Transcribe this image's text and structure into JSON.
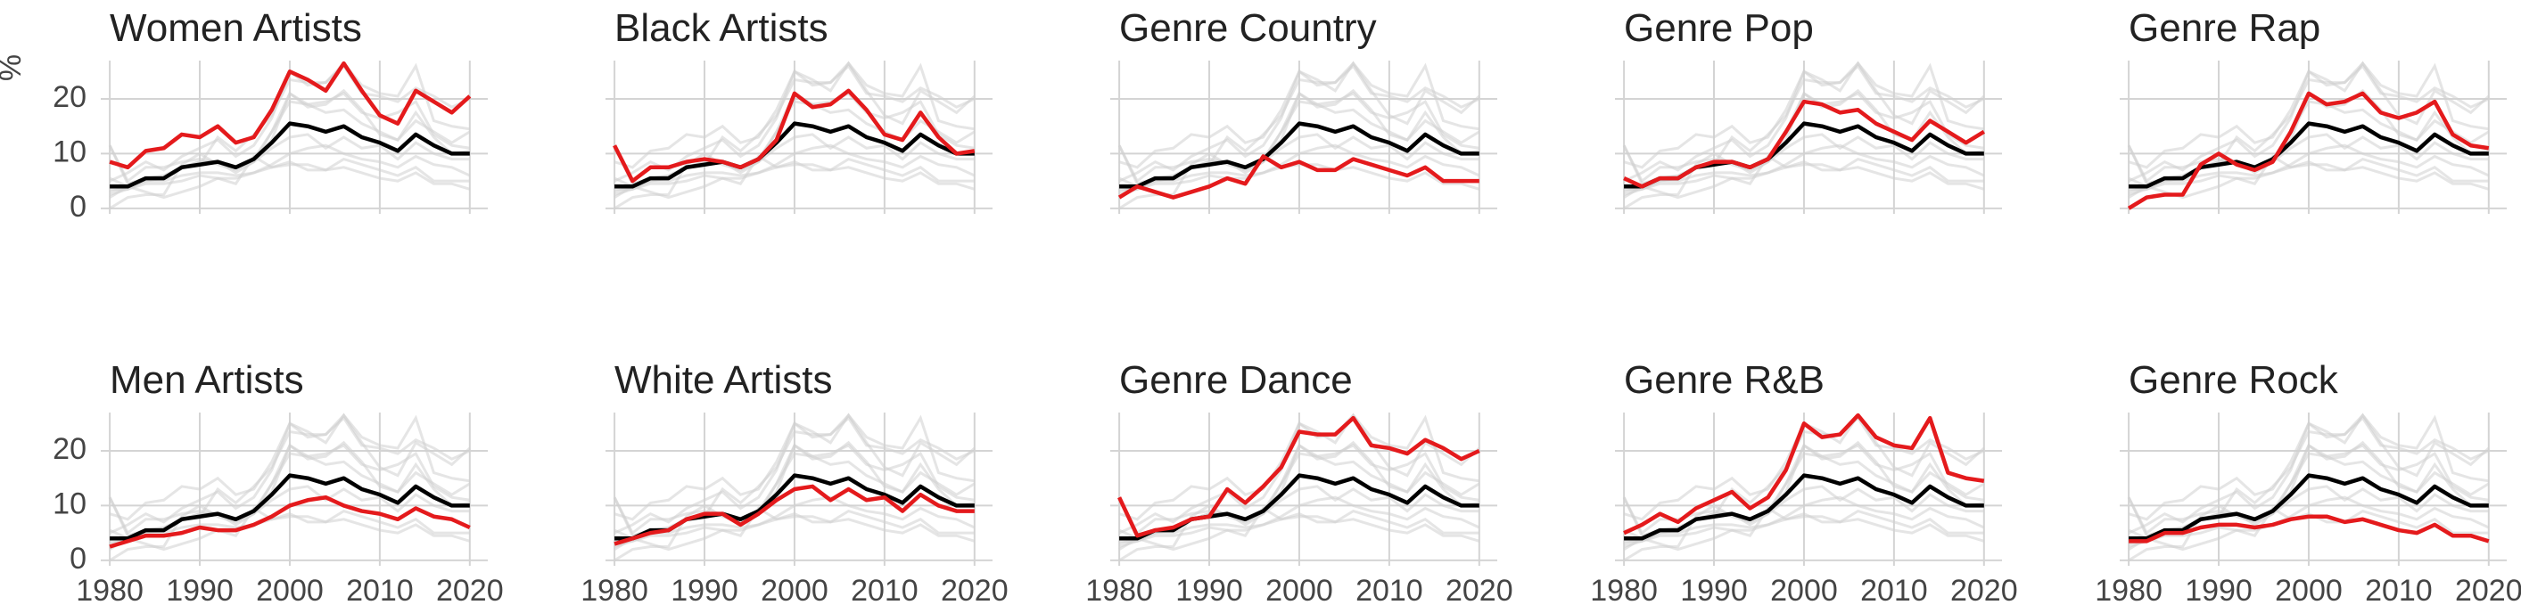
{
  "chart_data": [
    {
      "type": "line",
      "title": "Women Artists",
      "ylabel": "%",
      "x": [
        1980,
        1982,
        1984,
        1986,
        1988,
        1990,
        1992,
        1994,
        1996,
        1998,
        2000,
        2002,
        2004,
        2006,
        2008,
        2010,
        2012,
        2014,
        2016,
        2018,
        2020
      ],
      "series": [
        {
          "color": "#e41a1c",
          "values": [
            8.5,
            7.5,
            10.5,
            11,
            13.5,
            13,
            15,
            12,
            13,
            18,
            25,
            23.5,
            21.5,
            26.5,
            21.5,
            17,
            15.5,
            21.5,
            19.5,
            17.5,
            20.5
          ]
        },
        {
          "color": "#000000",
          "values": [
            4,
            4,
            5.5,
            5.5,
            7.5,
            8,
            8.5,
            7.5,
            9,
            12,
            15.5,
            15,
            14,
            15,
            13,
            12,
            10.5,
            13.5,
            11.5,
            10,
            10
          ]
        }
      ],
      "xlim": [
        1979,
        2022
      ],
      "ylim": [
        -1,
        27
      ],
      "xticks": [
        1980,
        1990,
        2000,
        2010,
        2020
      ],
      "yticks": [
        0,
        10,
        20
      ],
      "grid": true
    },
    {
      "type": "line",
      "title": "Black Artists",
      "x": [
        1980,
        1982,
        1984,
        1986,
        1988,
        1990,
        1992,
        1994,
        1996,
        1998,
        2000,
        2002,
        2004,
        2006,
        2008,
        2010,
        2012,
        2014,
        2016,
        2018,
        2020
      ],
      "series": [
        {
          "color": "#e41a1c",
          "values": [
            11.5,
            5,
            7.5,
            7.5,
            8.5,
            9,
            8.5,
            7.5,
            9,
            12.5,
            21,
            18.5,
            19,
            21.5,
            18,
            13.5,
            12.5,
            17.5,
            13,
            10,
            10.5
          ]
        },
        {
          "color": "#000000",
          "values": [
            4,
            4,
            5.5,
            5.5,
            7.5,
            8,
            8.5,
            7.5,
            9,
            12,
            15.5,
            15,
            14,
            15,
            13,
            12,
            10.5,
            13.5,
            11.5,
            10,
            10
          ]
        }
      ],
      "xlim": [
        1979,
        2022
      ],
      "ylim": [
        -1,
        27
      ],
      "xticks": [
        1980,
        1990,
        2000,
        2010,
        2020
      ],
      "yticks": [
        0,
        10,
        20
      ],
      "grid": true
    },
    {
      "type": "line",
      "title": "Genre Country",
      "x": [
        1980,
        1982,
        1984,
        1986,
        1988,
        1990,
        1992,
        1994,
        1996,
        1998,
        2000,
        2002,
        2004,
        2006,
        2008,
        2010,
        2012,
        2014,
        2016,
        2018,
        2020
      ],
      "series": [
        {
          "color": "#e41a1c",
          "values": [
            2,
            4,
            3,
            2,
            3,
            4,
            5.5,
            4.5,
            9.5,
            7.5,
            8.5,
            7,
            7,
            9,
            8,
            7,
            6,
            7.5,
            5,
            5,
            5
          ]
        },
        {
          "color": "#000000",
          "values": [
            4,
            4,
            5.5,
            5.5,
            7.5,
            8,
            8.5,
            7.5,
            9,
            12,
            15.5,
            15,
            14,
            15,
            13,
            12,
            10.5,
            13.5,
            11.5,
            10,
            10
          ]
        }
      ],
      "xlim": [
        1979,
        2022
      ],
      "ylim": [
        -1,
        27
      ],
      "xticks": [
        1980,
        1990,
        2000,
        2010,
        2020
      ],
      "yticks": [
        0,
        10,
        20
      ],
      "grid": true
    },
    {
      "type": "line",
      "title": "Genre Pop",
      "x": [
        1980,
        1982,
        1984,
        1986,
        1988,
        1990,
        1992,
        1994,
        1996,
        1998,
        2000,
        2002,
        2004,
        2006,
        2008,
        2010,
        2012,
        2014,
        2016,
        2018,
        2020
      ],
      "series": [
        {
          "color": "#e41a1c",
          "values": [
            5.5,
            4,
            5.5,
            5.5,
            7.5,
            8.5,
            8.5,
            7.5,
            9,
            14,
            19.5,
            19,
            17.5,
            18,
            15.5,
            14,
            12.5,
            16,
            14,
            12,
            14
          ]
        },
        {
          "color": "#000000",
          "values": [
            4,
            4,
            5.5,
            5.5,
            7.5,
            8,
            8.5,
            7.5,
            9,
            12,
            15.5,
            15,
            14,
            15,
            13,
            12,
            10.5,
            13.5,
            11.5,
            10,
            10
          ]
        }
      ],
      "xlim": [
        1979,
        2022
      ],
      "ylim": [
        -1,
        27
      ],
      "xticks": [
        1980,
        1990,
        2000,
        2010,
        2020
      ],
      "yticks": [
        0,
        10,
        20
      ],
      "grid": true
    },
    {
      "type": "line",
      "title": "Genre Rap",
      "x": [
        1980,
        1982,
        1984,
        1986,
        1988,
        1990,
        1992,
        1994,
        1996,
        1998,
        2000,
        2002,
        2004,
        2006,
        2008,
        2010,
        2012,
        2014,
        2016,
        2018,
        2020
      ],
      "series": [
        {
          "color": "#e41a1c",
          "values": [
            0,
            2,
            2.5,
            2.5,
            8,
            10,
            8,
            7,
            8.5,
            14,
            21,
            19,
            19.5,
            21,
            17.5,
            16.5,
            17.5,
            19.5,
            13.5,
            11.5,
            11
          ]
        },
        {
          "color": "#000000",
          "values": [
            4,
            4,
            5.5,
            5.5,
            7.5,
            8,
            8.5,
            7.5,
            9,
            12,
            15.5,
            15,
            14,
            15,
            13,
            12,
            10.5,
            13.5,
            11.5,
            10,
            10
          ]
        }
      ],
      "xlim": [
        1979,
        2022
      ],
      "ylim": [
        -1,
        27
      ],
      "xticks": [
        1980,
        1990,
        2000,
        2010,
        2020
      ],
      "yticks": [
        0,
        10,
        20
      ],
      "grid": true
    },
    {
      "type": "line",
      "title": "Men Artists",
      "x": [
        1980,
        1982,
        1984,
        1986,
        1988,
        1990,
        1992,
        1994,
        1996,
        1998,
        2000,
        2002,
        2004,
        2006,
        2008,
        2010,
        2012,
        2014,
        2016,
        2018,
        2020
      ],
      "series": [
        {
          "color": "#e41a1c",
          "values": [
            2.5,
            3.5,
            4.5,
            4.5,
            5,
            6,
            5.5,
            5.5,
            6.5,
            8,
            10,
            11,
            11.5,
            10,
            9,
            8.5,
            7.5,
            9.5,
            8,
            7.5,
            6
          ]
        },
        {
          "color": "#000000",
          "values": [
            4,
            4,
            5.5,
            5.5,
            7.5,
            8,
            8.5,
            7.5,
            9,
            12,
            15.5,
            15,
            14,
            15,
            13,
            12,
            10.5,
            13.5,
            11.5,
            10,
            10
          ]
        }
      ],
      "xlim": [
        1979,
        2022
      ],
      "ylim": [
        -1,
        27
      ],
      "xticks": [
        1980,
        1990,
        2000,
        2010,
        2020
      ],
      "yticks": [
        0,
        10,
        20
      ],
      "grid": true
    },
    {
      "type": "line",
      "title": "White Artists",
      "x": [
        1980,
        1982,
        1984,
        1986,
        1988,
        1990,
        1992,
        1994,
        1996,
        1998,
        2000,
        2002,
        2004,
        2006,
        2008,
        2010,
        2012,
        2014,
        2016,
        2018,
        2020
      ],
      "series": [
        {
          "color": "#e41a1c",
          "values": [
            3,
            4,
            5,
            5.5,
            7.5,
            8.5,
            8.5,
            6.5,
            8.5,
            11,
            13,
            13.5,
            11,
            13,
            11,
            11.5,
            9,
            12,
            10,
            9,
            9
          ]
        },
        {
          "color": "#000000",
          "values": [
            4,
            4,
            5.5,
            5.5,
            7.5,
            8,
            8.5,
            7.5,
            9,
            12,
            15.5,
            15,
            14,
            15,
            13,
            12,
            10.5,
            13.5,
            11.5,
            10,
            10
          ]
        }
      ],
      "xlim": [
        1979,
        2022
      ],
      "ylim": [
        -1,
        27
      ],
      "xticks": [
        1980,
        1990,
        2000,
        2010,
        2020
      ],
      "yticks": [
        0,
        10,
        20
      ],
      "grid": true
    },
    {
      "type": "line",
      "title": "Genre Dance",
      "x": [
        1980,
        1982,
        1984,
        1986,
        1988,
        1990,
        1992,
        1994,
        1996,
        1998,
        2000,
        2002,
        2004,
        2006,
        2008,
        2010,
        2012,
        2014,
        2016,
        2018,
        2020
      ],
      "series": [
        {
          "color": "#e41a1c",
          "values": [
            11.5,
            4.5,
            5.5,
            6,
            7.5,
            8,
            13,
            10.5,
            13.5,
            17,
            23.5,
            23,
            23,
            26,
            21,
            20.5,
            19.5,
            22,
            20.5,
            18.5,
            20
          ]
        },
        {
          "color": "#000000",
          "values": [
            4,
            4,
            5.5,
            5.5,
            7.5,
            8,
            8.5,
            7.5,
            9,
            12,
            15.5,
            15,
            14,
            15,
            13,
            12,
            10.5,
            13.5,
            11.5,
            10,
            10
          ]
        }
      ],
      "xlim": [
        1979,
        2022
      ],
      "ylim": [
        -1,
        27
      ],
      "xticks": [
        1980,
        1990,
        2000,
        2010,
        2020
      ],
      "yticks": [
        0,
        10,
        20
      ],
      "grid": true
    },
    {
      "type": "line",
      "title": "Genre R&B",
      "x": [
        1980,
        1982,
        1984,
        1986,
        1988,
        1990,
        1992,
        1994,
        1996,
        1998,
        2000,
        2002,
        2004,
        2006,
        2008,
        2010,
        2012,
        2014,
        2016,
        2018,
        2020
      ],
      "series": [
        {
          "color": "#e41a1c",
          "values": [
            5,
            6.5,
            8.5,
            7,
            9.5,
            11,
            12.5,
            9.5,
            11.5,
            16.5,
            25,
            22.5,
            23,
            26.5,
            22.5,
            21,
            20.5,
            26,
            16,
            15,
            14.5
          ]
        },
        {
          "color": "#000000",
          "values": [
            4,
            4,
            5.5,
            5.5,
            7.5,
            8,
            8.5,
            7.5,
            9,
            12,
            15.5,
            15,
            14,
            15,
            13,
            12,
            10.5,
            13.5,
            11.5,
            10,
            10
          ]
        }
      ],
      "xlim": [
        1979,
        2022
      ],
      "ylim": [
        -1,
        27
      ],
      "xticks": [
        1980,
        1990,
        2000,
        2010,
        2020
      ],
      "yticks": [
        0,
        10,
        20
      ],
      "grid": true
    },
    {
      "type": "line",
      "title": "Genre Rock",
      "x": [
        1980,
        1982,
        1984,
        1986,
        1988,
        1990,
        1992,
        1994,
        1996,
        1998,
        2000,
        2002,
        2004,
        2006,
        2008,
        2010,
        2012,
        2014,
        2016,
        2018,
        2020
      ],
      "series": [
        {
          "color": "#e41a1c",
          "values": [
            3.5,
            3.5,
            5,
            5,
            6,
            6.5,
            6.5,
            6,
            6.5,
            7.5,
            8,
            8,
            7,
            7.5,
            6.5,
            5.5,
            5,
            6.5,
            4.5,
            4.5,
            3.5
          ]
        },
        {
          "color": "#000000",
          "values": [
            4,
            4,
            5.5,
            5.5,
            7.5,
            8,
            8.5,
            7.5,
            9,
            12,
            15.5,
            15,
            14,
            15,
            13,
            12,
            10.5,
            13.5,
            11.5,
            10,
            10
          ]
        }
      ],
      "xlim": [
        1979,
        2022
      ],
      "ylim": [
        -1,
        27
      ],
      "xticks": [
        1980,
        1990,
        2000,
        2010,
        2020
      ],
      "yticks": [
        0,
        10,
        20
      ],
      "grid": true
    }
  ]
}
